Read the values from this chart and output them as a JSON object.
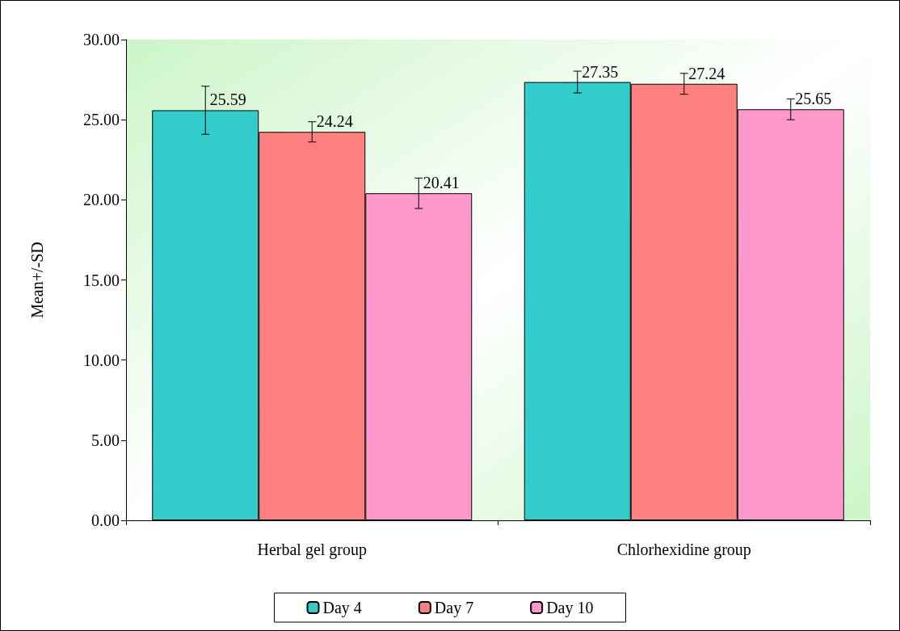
{
  "chart_data": {
    "type": "bar",
    "ylabel": "Mean+/-SD",
    "categories": [
      "Herbal gel group",
      "Chlorhexidine group"
    ],
    "series": [
      {
        "name": "Day 4",
        "color": "#33cccc",
        "values": [
          25.59,
          27.35
        ],
        "errors": [
          1.5,
          0.68
        ]
      },
      {
        "name": "Day 7",
        "color": "#ff8080",
        "values": [
          24.24,
          27.24
        ],
        "errors": [
          0.63,
          0.65
        ]
      },
      {
        "name": "Day 10",
        "color": "#ff99cc",
        "values": [
          20.41,
          25.65
        ],
        "errors": [
          0.95,
          0.65
        ]
      }
    ],
    "ylim": [
      0,
      30
    ],
    "yticks": [
      {
        "value": 0,
        "label": "0.00"
      },
      {
        "value": 5,
        "label": "5.00"
      },
      {
        "value": 10,
        "label": "10.00"
      },
      {
        "value": 15,
        "label": "15.00"
      },
      {
        "value": 20,
        "label": "20.00"
      },
      {
        "value": 25,
        "label": "25.00"
      },
      {
        "value": 30,
        "label": "30.00"
      }
    ],
    "grid": false,
    "legend": "bottom",
    "data_labels": true
  }
}
